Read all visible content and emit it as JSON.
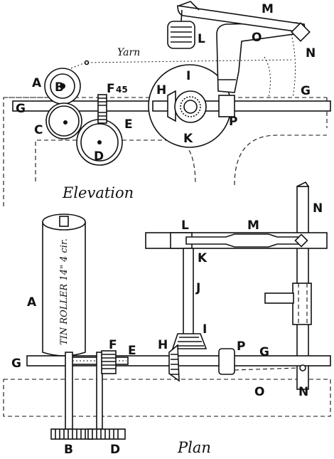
{
  "labels": {
    "elevation": {
      "A": "A",
      "B": "B",
      "C": "C",
      "D": "D",
      "E": "E",
      "F": "F",
      "F_note": "45",
      "G_left": "G",
      "G_right": "G",
      "H": "H",
      "I": "I",
      "K": "K",
      "L": "L",
      "M": "M",
      "N": "N",
      "O": "O",
      "P": "P"
    },
    "plan": {
      "A": "A",
      "B": "B",
      "D": "D",
      "E": "E",
      "F": "F",
      "G_left": "G",
      "G_right": "G",
      "H": "H",
      "I": "I",
      "J": "J",
      "K": "K",
      "L": "L",
      "M": "M",
      "N_top": "N",
      "N_bottom": "N",
      "O": "O",
      "P": "P"
    }
  },
  "yarn_label": "Yarn",
  "roller_text": "TIN ROLLER 14\" 4 cir.",
  "captions": {
    "elevation": "Elevation",
    "plan": "Plan"
  },
  "colors": {
    "ink": "#111111",
    "paper": "#ffffff"
  }
}
